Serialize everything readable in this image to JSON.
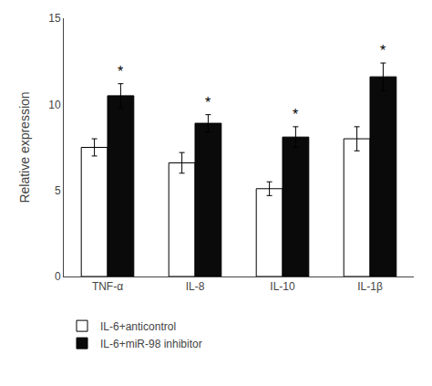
{
  "chart_data": {
    "type": "bar",
    "categories": [
      "TNF-α",
      "IL-8",
      "IL-10",
      "IL-1β"
    ],
    "series": [
      {
        "name": "IL-6+anticontrol",
        "color": "#ffffff",
        "values": [
          7.5,
          6.6,
          5.1,
          8.0
        ],
        "errors": [
          0.5,
          0.6,
          0.4,
          0.7
        ]
      },
      {
        "name": "IL-6+miR-98 inhibitor",
        "color": "#0a0a0a",
        "values": [
          10.5,
          8.9,
          8.1,
          11.6
        ],
        "errors": [
          0.7,
          0.5,
          0.6,
          0.8
        ]
      }
    ],
    "ylabel": "Relative expression",
    "ylim": [
      0,
      15
    ],
    "yticks": [
      0,
      5,
      10,
      15
    ],
    "grid": false,
    "legend": "bottom",
    "annotations": [
      {
        "text": "*",
        "category": "TNF-α",
        "series": "IL-6+miR-98 inhibitor"
      },
      {
        "text": "*",
        "category": "IL-8",
        "series": "IL-6+miR-98 inhibitor"
      },
      {
        "text": "*",
        "category": "IL-10",
        "series": "IL-6+miR-98 inhibitor"
      },
      {
        "text": "*",
        "category": "IL-1β",
        "series": "IL-6+miR-98 inhibitor"
      }
    ]
  }
}
